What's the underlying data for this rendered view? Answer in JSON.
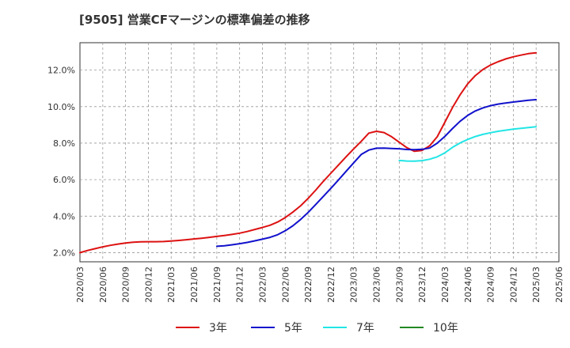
{
  "chart_data": {
    "type": "line",
    "title": "[9505]  営業CFマージンの標準偏差の推移",
    "xlabel": "",
    "ylabel": "",
    "grid": true,
    "legend_position": "bottom",
    "x_ticks": [
      "2020/03",
      "2020/06",
      "2020/09",
      "2020/12",
      "2021/03",
      "2021/06",
      "2021/09",
      "2021/12",
      "2022/03",
      "2022/06",
      "2022/09",
      "2022/12",
      "2023/03",
      "2023/06",
      "2023/09",
      "2023/12",
      "2024/03",
      "2024/06",
      "2024/09",
      "2024/12",
      "2025/03",
      "2025/06"
    ],
    "y_ticks": [
      "2.0%",
      "4.0%",
      "6.0%",
      "8.0%",
      "10.0%",
      "12.0%"
    ],
    "y_tick_values": [
      2,
      4,
      6,
      8,
      10,
      12
    ],
    "ylim": [
      1.5,
      13.5
    ],
    "x_range": [
      "2020/03",
      "2025/06"
    ],
    "y_unit": "%",
    "series": [
      {
        "name": "3年",
        "color": "#dd1111",
        "x": [
          "2020/03",
          "2020/04",
          "2020/05",
          "2020/06",
          "2020/07",
          "2020/08",
          "2020/09",
          "2020/10",
          "2020/11",
          "2020/12",
          "2021/01",
          "2021/02",
          "2021/03",
          "2021/04",
          "2021/05",
          "2021/06",
          "2021/07",
          "2021/08",
          "2021/09",
          "2021/10",
          "2021/11",
          "2021/12",
          "2022/01",
          "2022/02",
          "2022/03",
          "2022/04",
          "2022/05",
          "2022/06",
          "2022/07",
          "2022/08",
          "2022/09",
          "2022/10",
          "2022/11",
          "2022/12",
          "2023/01",
          "2023/02",
          "2023/03",
          "2023/04",
          "2023/05",
          "2023/06",
          "2023/07",
          "2023/08",
          "2023/09",
          "2023/10",
          "2023/11",
          "2023/12",
          "2024/01",
          "2024/02",
          "2024/03",
          "2024/04",
          "2024/05",
          "2024/06",
          "2024/07",
          "2024/08",
          "2024/09",
          "2024/10",
          "2024/11",
          "2024/12",
          "2025/01",
          "2025/02",
          "2025/03"
        ],
        "values": [
          2.0,
          2.12,
          2.22,
          2.32,
          2.4,
          2.47,
          2.53,
          2.57,
          2.59,
          2.6,
          2.6,
          2.61,
          2.64,
          2.67,
          2.71,
          2.75,
          2.79,
          2.84,
          2.89,
          2.94,
          3.0,
          3.07,
          3.16,
          3.27,
          3.38,
          3.5,
          3.68,
          3.92,
          4.22,
          4.56,
          4.97,
          5.42,
          5.9,
          6.35,
          6.8,
          7.25,
          7.68,
          8.1,
          8.55,
          8.65,
          8.58,
          8.35,
          8.05,
          7.75,
          7.55,
          7.6,
          7.85,
          8.35,
          9.15,
          9.95,
          10.65,
          11.25,
          11.7,
          12.03,
          12.28,
          12.46,
          12.61,
          12.73,
          12.82,
          12.9,
          12.95
        ]
      },
      {
        "name": "5年",
        "color": "#1111cc",
        "x": [
          "2021/09",
          "2021/10",
          "2021/11",
          "2021/12",
          "2022/01",
          "2022/02",
          "2022/03",
          "2022/04",
          "2022/05",
          "2022/06",
          "2022/07",
          "2022/08",
          "2022/09",
          "2022/10",
          "2022/11",
          "2022/12",
          "2023/01",
          "2023/02",
          "2023/03",
          "2023/04",
          "2023/05",
          "2023/06",
          "2023/07",
          "2023/08",
          "2023/09",
          "2023/10",
          "2023/11",
          "2023/12",
          "2024/01",
          "2024/02",
          "2024/03",
          "2024/04",
          "2024/05",
          "2024/06",
          "2024/07",
          "2024/08",
          "2024/09",
          "2024/10",
          "2024/11",
          "2024/12",
          "2025/01",
          "2025/02",
          "2025/03"
        ],
        "values": [
          2.35,
          2.38,
          2.43,
          2.49,
          2.56,
          2.65,
          2.74,
          2.84,
          2.98,
          3.2,
          3.47,
          3.81,
          4.2,
          4.63,
          5.08,
          5.52,
          5.98,
          6.45,
          6.92,
          7.38,
          7.62,
          7.72,
          7.73,
          7.71,
          7.69,
          7.65,
          7.64,
          7.66,
          7.73,
          8.0,
          8.37,
          8.8,
          9.2,
          9.52,
          9.76,
          9.93,
          10.05,
          10.14,
          10.2,
          10.25,
          10.3,
          10.35,
          10.38
        ]
      },
      {
        "name": "7年",
        "color": "#22e5e5",
        "x": [
          "2023/09",
          "2023/10",
          "2023/11",
          "2023/12",
          "2024/01",
          "2024/02",
          "2024/03",
          "2024/04",
          "2024/05",
          "2024/06",
          "2024/07",
          "2024/08",
          "2024/09",
          "2024/10",
          "2024/11",
          "2024/12",
          "2025/01",
          "2025/02",
          "2025/03"
        ],
        "values": [
          7.05,
          7.02,
          7.01,
          7.04,
          7.12,
          7.25,
          7.47,
          7.77,
          8.01,
          8.2,
          8.36,
          8.48,
          8.57,
          8.65,
          8.71,
          8.77,
          8.81,
          8.85,
          8.9
        ]
      },
      {
        "name": "10年",
        "color": "#228822",
        "x": [],
        "values": []
      }
    ]
  }
}
